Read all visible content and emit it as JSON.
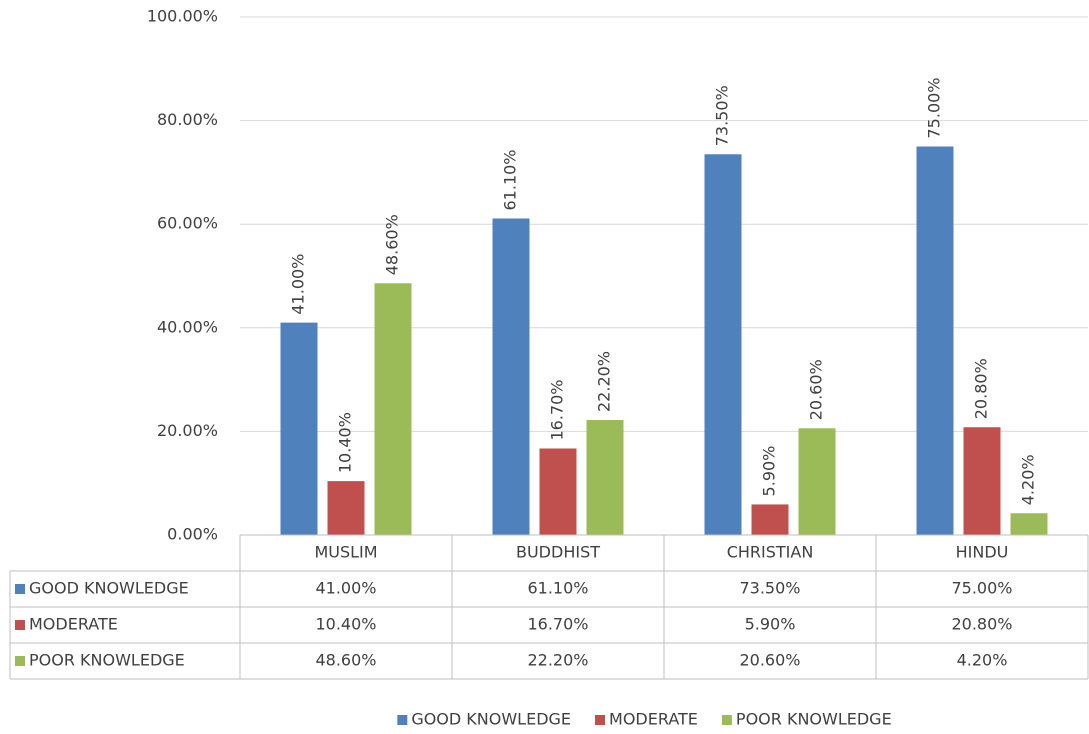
{
  "chart_data": {
    "type": "bar",
    "categories": [
      "MUSLIM",
      "BUDDHIST",
      "CHRISTIAN",
      "HINDU"
    ],
    "series": [
      {
        "name": "GOOD KNOWLEDGE",
        "color": "#4f81bd",
        "values": [
          41.0,
          61.1,
          73.5,
          75.0
        ],
        "value_labels": [
          "41.00%",
          "61.10%",
          "73.50%",
          "75.00%"
        ]
      },
      {
        "name": "MODERATE",
        "color": "#c0504d",
        "values": [
          10.4,
          16.7,
          5.9,
          20.8
        ],
        "value_labels": [
          "10.40%",
          "16.70%",
          "5.90%",
          "20.80%"
        ]
      },
      {
        "name": "POOR KNOWLEDGE",
        "color": "#9bbb59",
        "values": [
          48.6,
          22.2,
          20.6,
          4.2
        ],
        "value_labels": [
          "48.60%",
          "22.20%",
          "20.60%",
          "4.20%"
        ]
      }
    ],
    "ylim": [
      0,
      100
    ],
    "yticks": [
      {
        "value": 0,
        "label": "0.00%"
      },
      {
        "value": 20,
        "label": "20.00%"
      },
      {
        "value": 40,
        "label": "40.00%"
      },
      {
        "value": 60,
        "label": "60.00%"
      },
      {
        "value": 80,
        "label": "80.00%"
      },
      {
        "value": 100,
        "label": "100.00%"
      }
    ],
    "grid": true,
    "legend": "bottom",
    "data_table": true
  }
}
